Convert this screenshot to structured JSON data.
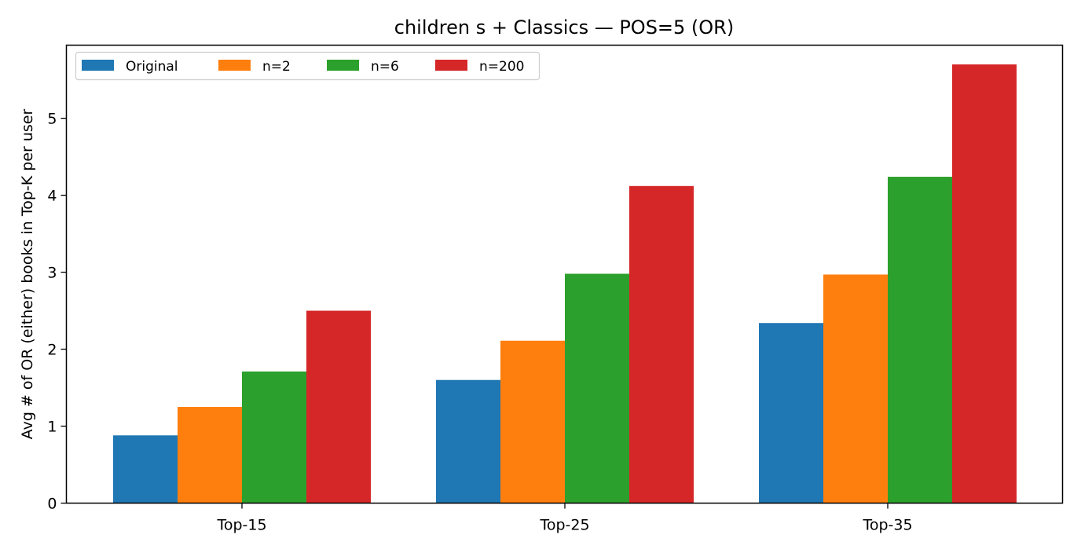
{
  "chart_data": {
    "type": "bar",
    "title": "children s + Classics — POS=5 (OR)",
    "xlabel": "",
    "ylabel": "Avg # of OR (either) books in Top-K per user",
    "categories": [
      "Top-15",
      "Top-25",
      "Top-35"
    ],
    "ylim": [
      0,
      5.95
    ],
    "yticks": [
      0,
      1,
      2,
      3,
      4,
      5
    ],
    "grid": false,
    "legend": {
      "placement": "top-left",
      "columns": 4
    },
    "series": [
      {
        "name": "Original",
        "color": "#1f77b4",
        "values": [
          0.88,
          1.6,
          2.34
        ]
      },
      {
        "name": "n=2",
        "color": "#ff7f0e",
        "values": [
          1.25,
          2.11,
          2.97
        ]
      },
      {
        "name": "n=6",
        "color": "#2ca02c",
        "values": [
          1.71,
          2.98,
          4.24
        ]
      },
      {
        "name": "n=200",
        "color": "#d62728",
        "values": [
          2.5,
          4.12,
          5.7
        ]
      }
    ]
  }
}
